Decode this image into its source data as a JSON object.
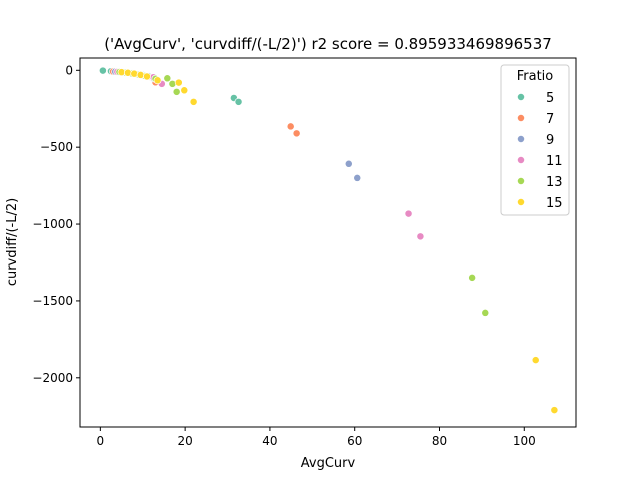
{
  "chart_data": {
    "type": "scatter",
    "title": "('AvgCurv', 'curvdiff/(-L/2)') r2 score = 0.895933469896537",
    "xlabel": "AvgCurv",
    "ylabel": "curvdiff/(-L/2)",
    "xlim": [
      -4.8,
      112.2
    ],
    "ylim": [
      -2320,
      80
    ],
    "xticks": [
      0,
      20,
      40,
      60,
      80,
      100
    ],
    "yticks": [
      0,
      -500,
      -1000,
      -1500,
      -2000
    ],
    "xtick_labels": [
      "0",
      "20",
      "40",
      "60",
      "80",
      "100"
    ],
    "ytick_labels": [
      "0",
      "−500",
      "−1000",
      "−1500",
      "−2000"
    ],
    "grid": false,
    "legend": {
      "title": "Fratio",
      "placement": "top-right"
    },
    "series": [
      {
        "name": "5",
        "color": "#66c2a5",
        "points": [
          [
            0.6,
            -2
          ],
          [
            2.5,
            -6
          ],
          [
            4.0,
            -10
          ],
          [
            5.5,
            -14
          ],
          [
            7.0,
            -18
          ],
          [
            8.5,
            -24
          ],
          [
            10.0,
            -30
          ],
          [
            11.5,
            -38
          ],
          [
            31.5,
            -180
          ],
          [
            32.6,
            -205
          ]
        ]
      },
      {
        "name": "7",
        "color": "#fc8d62",
        "points": [
          [
            3.0,
            -8
          ],
          [
            4.5,
            -12
          ],
          [
            6.0,
            -17
          ],
          [
            7.5,
            -22
          ],
          [
            9.0,
            -28
          ],
          [
            10.5,
            -36
          ],
          [
            12.0,
            -45
          ],
          [
            13.0,
            -78
          ],
          [
            44.9,
            -365
          ],
          [
            46.3,
            -410
          ]
        ]
      },
      {
        "name": "9",
        "color": "#8da0cb",
        "points": [
          [
            3.5,
            -9
          ],
          [
            5.0,
            -13
          ],
          [
            6.5,
            -18
          ],
          [
            8.0,
            -24
          ],
          [
            9.5,
            -31
          ],
          [
            11.0,
            -40
          ],
          [
            12.5,
            -52
          ],
          [
            58.6,
            -608
          ],
          [
            60.6,
            -700
          ]
        ]
      },
      {
        "name": "11",
        "color": "#e78ac3",
        "points": [
          [
            4.0,
            -10
          ],
          [
            5.5,
            -14
          ],
          [
            7.0,
            -19
          ],
          [
            8.5,
            -26
          ],
          [
            10.0,
            -34
          ],
          [
            12.5,
            -45
          ],
          [
            14.5,
            -88
          ],
          [
            72.7,
            -932
          ],
          [
            75.5,
            -1080
          ]
        ]
      },
      {
        "name": "13",
        "color": "#a6d854",
        "points": [
          [
            4.5,
            -11
          ],
          [
            6.0,
            -15
          ],
          [
            7.5,
            -21
          ],
          [
            9.0,
            -28
          ],
          [
            10.5,
            -37
          ],
          [
            13.0,
            -55
          ],
          [
            15.8,
            -52
          ],
          [
            17.0,
            -88
          ],
          [
            18.0,
            -140
          ],
          [
            87.7,
            -1350
          ],
          [
            90.8,
            -1578
          ]
        ]
      },
      {
        "name": "15",
        "color": "#ffd92f",
        "points": [
          [
            5.0,
            -12
          ],
          [
            6.5,
            -16
          ],
          [
            8.0,
            -22
          ],
          [
            9.5,
            -30
          ],
          [
            11.0,
            -40
          ],
          [
            13.5,
            -65
          ],
          [
            18.5,
            -80
          ],
          [
            19.8,
            -130
          ],
          [
            22.0,
            -205
          ],
          [
            102.7,
            -1885
          ],
          [
            107.1,
            -2210
          ]
        ]
      }
    ]
  }
}
